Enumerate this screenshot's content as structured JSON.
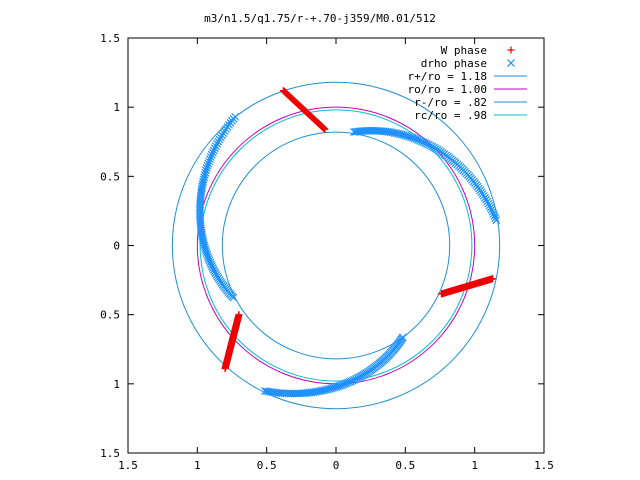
{
  "chart_data": {
    "type": "scatter",
    "title": "m3/n1.5/q1.75/r-+.70-j359/M0.01/512",
    "xlabel": "",
    "ylabel": "",
    "xlim": [
      -1.5,
      1.5
    ],
    "ylim": [
      -1.5,
      1.5
    ],
    "x_ticks": [
      -1.5,
      -1,
      -0.5,
      0,
      0.5,
      1,
      1.5
    ],
    "x_tick_labels": [
      "1.5",
      "1",
      "0.5",
      "0",
      "0.5",
      "1",
      "1.5"
    ],
    "y_ticks": [
      1.5,
      1,
      0.5,
      0,
      -0.5,
      -1,
      -1.5
    ],
    "y_tick_labels": [
      "1.5",
      "1",
      "0.5",
      "0",
      "0.5",
      "1",
      "1.5"
    ],
    "grid": false,
    "legend_position": "top-right",
    "circles": [
      {
        "name": "r+/ro = 1.18",
        "radius": 1.18,
        "color": "#1f8fd6"
      },
      {
        "name": "ro/ro = 1.00",
        "radius": 1.0,
        "color": "#c000c0"
      },
      {
        "name": "r-/ro = .82",
        "radius": 0.82,
        "color": "#1f8fd6"
      },
      {
        "name": "rc/ro = .98",
        "radius": 0.98,
        "color": "#00c0d0"
      }
    ],
    "series": [
      {
        "name": "W phase",
        "marker": "+",
        "color": "#ee0000",
        "arcs": [
          {
            "from": [
              -0.38,
              1.12
            ],
            "to": [
              -0.08,
              0.84
            ]
          },
          {
            "from": [
              0.76,
              -0.35
            ],
            "to": [
              1.13,
              -0.24
            ]
          },
          {
            "from": [
              -0.7,
              -0.5
            ],
            "to": [
              -0.8,
              -0.89
            ]
          }
        ]
      },
      {
        "name": "drho phase",
        "marker": "x",
        "color": "#1e90ff",
        "arcs": [
          {
            "start_angle_deg": 81,
            "end_angle_deg": 9,
            "r_start": 0.83,
            "r_end": 1.17
          },
          {
            "start_angle_deg": 128,
            "end_angle_deg": 207,
            "r_start": 1.18,
            "r_end": 0.83
          },
          {
            "start_angle_deg": 244,
            "end_angle_deg": 306,
            "r_start": 1.17,
            "r_end": 0.82
          }
        ]
      }
    ]
  }
}
